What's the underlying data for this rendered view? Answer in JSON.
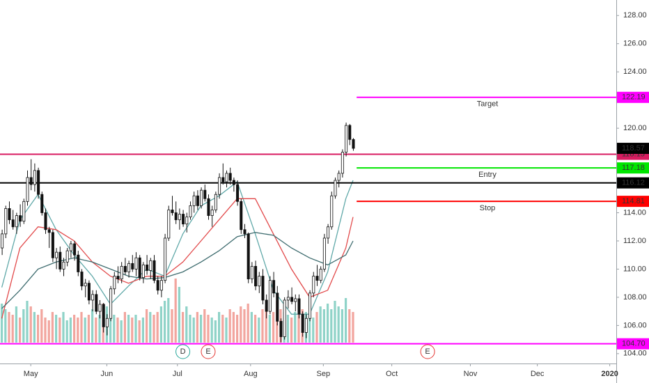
{
  "chart_data": {
    "type": "candlestick",
    "xlim": [
      -0.5,
      169.7
    ],
    "xticks": [
      {
        "value": 8,
        "label": "May"
      },
      {
        "value": 29,
        "label": "Jun"
      },
      {
        "value": 48.5,
        "label": "Jul"
      },
      {
        "value": 68.7,
        "label": "Aug"
      },
      {
        "value": 88.8,
        "label": "Sep"
      },
      {
        "value": 107.7,
        "label": "Oct"
      },
      {
        "value": 129.4,
        "label": "Nov"
      },
      {
        "value": 147.9,
        "label": "Dec"
      },
      {
        "value": 167.9,
        "label": "2020"
      }
    ],
    "ylim": [
      103.3,
      129.1
    ],
    "yticks": [
      {
        "value": 104,
        "label": "104.00"
      },
      {
        "value": 106,
        "label": "106.00"
      },
      {
        "value": 108,
        "label": "108.00"
      },
      {
        "value": 110,
        "label": "110.00"
      },
      {
        "value": 112,
        "label": "112.00"
      },
      {
        "value": 114,
        "label": "114.00"
      },
      {
        "value": 116,
        "label": "116.00"
      },
      {
        "value": 118,
        "label": "118.00"
      },
      {
        "value": 120,
        "label": "120.00"
      },
      {
        "value": 122,
        "label": "122.00"
      },
      {
        "value": 124,
        "label": "124.00"
      },
      {
        "value": 126,
        "label": "126.00"
      },
      {
        "value": 128,
        "label": "128.00"
      }
    ],
    "ohlc": [
      [
        111.5,
        112.8,
        111.0,
        112.5
      ],
      [
        112.5,
        114.5,
        112.2,
        114.3
      ],
      [
        114.3,
        114.8,
        113.2,
        113.5
      ],
      [
        113.5,
        114.2,
        112.8,
        113.0
      ],
      [
        113.0,
        114.0,
        112.5,
        113.8
      ],
      [
        113.8,
        114.6,
        113.0,
        113.4
      ],
      [
        113.4,
        115.0,
        113.2,
        114.8
      ],
      [
        114.8,
        117.0,
        114.5,
        116.5
      ],
      [
        116.5,
        117.8,
        115.6,
        116.0
      ],
      [
        116.0,
        117.5,
        115.5,
        117.0
      ],
      [
        117.0,
        117.2,
        115.0,
        115.3
      ],
      [
        115.3,
        115.5,
        113.8,
        114.0
      ],
      [
        114.0,
        114.3,
        112.5,
        112.8
      ],
      [
        112.8,
        113.0,
        111.5,
        112.6
      ],
      [
        112.6,
        112.8,
        110.5,
        110.8
      ],
      [
        110.8,
        111.5,
        110.0,
        111.2
      ],
      [
        111.2,
        111.6,
        109.8,
        110.0
      ],
      [
        110.0,
        110.8,
        109.5,
        110.5
      ],
      [
        110.5,
        111.5,
        110.2,
        111.3
      ],
      [
        111.3,
        112.0,
        110.8,
        111.8
      ],
      [
        111.8,
        112.0,
        110.6,
        111.0
      ],
      [
        111.0,
        111.3,
        109.5,
        109.8
      ],
      [
        109.8,
        110.0,
        108.5,
        108.8
      ],
      [
        108.8,
        109.3,
        108.0,
        109.0
      ],
      [
        109.0,
        109.2,
        107.5,
        107.8
      ],
      [
        107.8,
        108.5,
        107.0,
        108.2
      ],
      [
        108.2,
        108.5,
        106.8,
        107.0
      ],
      [
        107.0,
        107.8,
        106.5,
        107.5
      ],
      [
        107.5,
        107.6,
        105.5,
        105.9
      ],
      [
        105.9,
        106.8,
        105.3,
        106.5
      ],
      [
        106.5,
        108.8,
        106.3,
        108.6
      ],
      [
        108.6,
        109.8,
        108.2,
        109.5
      ],
      [
        109.5,
        110.2,
        109.0,
        109.3
      ],
      [
        109.3,
        110.5,
        109.0,
        110.2
      ],
      [
        110.2,
        110.8,
        109.6,
        109.8
      ],
      [
        109.8,
        110.6,
        109.4,
        110.4
      ],
      [
        110.4,
        111.0,
        109.8,
        110.0
      ],
      [
        110.0,
        111.2,
        109.5,
        110.8
      ],
      [
        110.8,
        111.0,
        109.2,
        109.4
      ],
      [
        109.4,
        110.5,
        109.0,
        110.3
      ],
      [
        110.3,
        111.0,
        109.6,
        109.9
      ],
      [
        109.9,
        110.8,
        109.3,
        110.6
      ],
      [
        110.6,
        111.0,
        109.0,
        109.2
      ],
      [
        109.2,
        109.5,
        108.2,
        108.5
      ],
      [
        108.5,
        109.5,
        108.0,
        109.2
      ],
      [
        109.2,
        112.5,
        109.0,
        112.2
      ],
      [
        112.2,
        114.5,
        112.0,
        114.2
      ],
      [
        114.2,
        115.2,
        113.8,
        114.0
      ],
      [
        114.0,
        114.8,
        113.2,
        113.5
      ],
      [
        113.5,
        114.3,
        112.8,
        113.9
      ],
      [
        113.9,
        114.2,
        113.0,
        113.2
      ],
      [
        113.2,
        114.0,
        112.6,
        113.7
      ],
      [
        113.7,
        114.8,
        113.5,
        114.5
      ],
      [
        114.5,
        115.5,
        114.0,
        115.2
      ],
      [
        115.2,
        115.6,
        114.2,
        114.5
      ],
      [
        114.5,
        115.8,
        114.3,
        115.6
      ],
      [
        115.6,
        116.0,
        114.8,
        115.0
      ],
      [
        115.0,
        115.3,
        113.5,
        113.8
      ],
      [
        113.8,
        114.5,
        113.0,
        114.2
      ],
      [
        114.2,
        115.5,
        114.0,
        115.3
      ],
      [
        115.3,
        116.8,
        115.0,
        116.5
      ],
      [
        116.5,
        117.5,
        116.0,
        116.2
      ],
      [
        116.2,
        117.0,
        115.8,
        116.8
      ],
      [
        116.8,
        117.2,
        116.0,
        116.3
      ],
      [
        116.3,
        116.5,
        115.5,
        116.0
      ],
      [
        116.0,
        116.3,
        114.5,
        114.8
      ],
      [
        114.8,
        115.0,
        112.5,
        112.8
      ],
      [
        112.8,
        113.2,
        112.2,
        112.5
      ],
      [
        112.5,
        112.6,
        109.0,
        109.3
      ],
      [
        109.3,
        110.5,
        109.0,
        110.2
      ],
      [
        110.2,
        110.6,
        108.5,
        108.8
      ],
      [
        108.8,
        109.8,
        108.3,
        109.5
      ],
      [
        109.5,
        110.0,
        107.5,
        107.8
      ],
      [
        107.8,
        108.2,
        106.5,
        107.0
      ],
      [
        107.0,
        109.5,
        106.8,
        109.2
      ],
      [
        109.2,
        109.8,
        108.0,
        108.3
      ],
      [
        108.3,
        108.8,
        106.0,
        106.3
      ],
      [
        106.3,
        106.5,
        104.8,
        105.2
      ],
      [
        105.2,
        108.0,
        105.0,
        107.8
      ],
      [
        107.8,
        108.5,
        107.2,
        108.0
      ],
      [
        108.0,
        108.7,
        107.5,
        107.7
      ],
      [
        107.7,
        108.2,
        107.0,
        107.9
      ],
      [
        107.9,
        108.2,
        106.5,
        106.8
      ],
      [
        106.8,
        107.0,
        105.2,
        105.5
      ],
      [
        105.5,
        106.8,
        105.1,
        106.5
      ],
      [
        106.5,
        108.5,
        106.3,
        108.3
      ],
      [
        108.3,
        109.8,
        108.0,
        109.5
      ],
      [
        109.5,
        110.3,
        108.8,
        109.2
      ],
      [
        109.2,
        110.2,
        109.0,
        110.0
      ],
      [
        110.0,
        112.5,
        109.8,
        112.2
      ],
      [
        112.2,
        113.2,
        111.8,
        113.0
      ],
      [
        113.0,
        115.5,
        112.8,
        115.2
      ],
      [
        115.2,
        116.5,
        115.0,
        116.3
      ],
      [
        116.3,
        117.0,
        115.8,
        116.8
      ],
      [
        116.8,
        118.5,
        116.5,
        118.3
      ],
      [
        118.3,
        120.4,
        118.0,
        120.2
      ],
      [
        120.2,
        120.3,
        118.8,
        119.2
      ],
      [
        119.2,
        119.3,
        118.4,
        118.57
      ]
    ],
    "up_color": "#ffffff",
    "down_color": "#111111",
    "volumes": [
      14,
      12,
      11,
      10,
      13,
      9,
      12,
      15,
      13,
      11,
      10,
      12,
      9,
      8,
      11,
      10,
      9,
      11,
      8,
      9,
      10,
      9,
      11,
      9,
      10,
      12,
      9,
      10,
      14,
      13,
      12,
      10,
      9,
      8,
      11,
      10,
      9,
      10,
      8,
      9,
      12,
      11,
      10,
      11,
      13,
      15,
      16,
      12,
      23,
      20,
      11,
      13,
      10,
      9,
      11,
      10,
      12,
      10,
      9,
      8,
      11,
      10,
      9,
      12,
      11,
      10,
      13,
      12,
      14,
      11,
      10,
      9,
      12,
      13,
      10,
      11,
      15,
      12,
      11,
      10,
      9,
      11,
      10,
      12,
      11,
      10,
      9,
      11,
      13,
      12,
      14,
      12,
      15,
      13,
      12,
      16,
      12,
      11
    ],
    "volume_ylim": [
      0,
      30
    ],
    "volume_up_color": "#8fd3c8",
    "volume_down_color": "#f2a59e",
    "moving_averages": [
      {
        "color": "#5fa8a8",
        "x": [
          0,
          5,
          10,
          15,
          20,
          25,
          30,
          35,
          40,
          45,
          50,
          55,
          60,
          65,
          70,
          75,
          80,
          85,
          90,
          95,
          97
        ],
        "values": [
          108.7,
          113.5,
          115.3,
          112.8,
          111.0,
          109.5,
          107.5,
          108.8,
          110.0,
          109.5,
          112.5,
          114.5,
          115.2,
          116.2,
          112.5,
          108.5,
          106.8,
          106.8,
          109.8,
          115.0,
          116.3
        ]
      },
      {
        "color": "#e2494a",
        "x": [
          0,
          5,
          10,
          15,
          20,
          25,
          30,
          35,
          40,
          45,
          50,
          55,
          60,
          65,
          70,
          75,
          80,
          85,
          90,
          95,
          97
        ],
        "values": [
          106.5,
          111.5,
          113.0,
          112.8,
          112.0,
          110.5,
          109.5,
          109.0,
          109.5,
          109.5,
          110.5,
          112.0,
          113.5,
          115.0,
          115.0,
          112.5,
          110.0,
          108.0,
          108.5,
          111.5,
          113.7
        ]
      },
      {
        "color": "#3d6b6e",
        "x": [
          0,
          5,
          10,
          15,
          20,
          25,
          30,
          35,
          40,
          45,
          50,
          55,
          60,
          65,
          70,
          75,
          80,
          85,
          90,
          95,
          97
        ],
        "values": [
          107.2,
          108.5,
          110.0,
          110.5,
          110.8,
          110.5,
          110.0,
          109.5,
          109.3,
          109.4,
          109.8,
          110.5,
          111.3,
          112.3,
          112.6,
          112.4,
          111.5,
          110.8,
          110.3,
          111.0,
          112.0
        ]
      }
    ],
    "levels": [
      {
        "value": 122.19,
        "color": "#ff00ff",
        "text": "Target",
        "x_start": 98
      },
      {
        "value": 118.15,
        "color": "#d81b60"
      },
      {
        "value": 117.18,
        "color": "#00e600",
        "text": "Entry",
        "x_start": 98
      },
      {
        "value": 116.12,
        "color": "#000000"
      },
      {
        "value": 114.81,
        "color": "#ff0000",
        "text": "Stop",
        "x_start": 98
      },
      {
        "value": 104.7,
        "value_label": "104.70",
        "color": "#ff00ff"
      }
    ],
    "last_price_color": "#000000",
    "events": [
      {
        "label": "D",
        "x": 50,
        "color": "#26a69a"
      },
      {
        "label": "E",
        "x": 57,
        "color": "#e53935"
      },
      {
        "label": "E",
        "x": 117.6,
        "color": "#e53935"
      }
    ]
  }
}
